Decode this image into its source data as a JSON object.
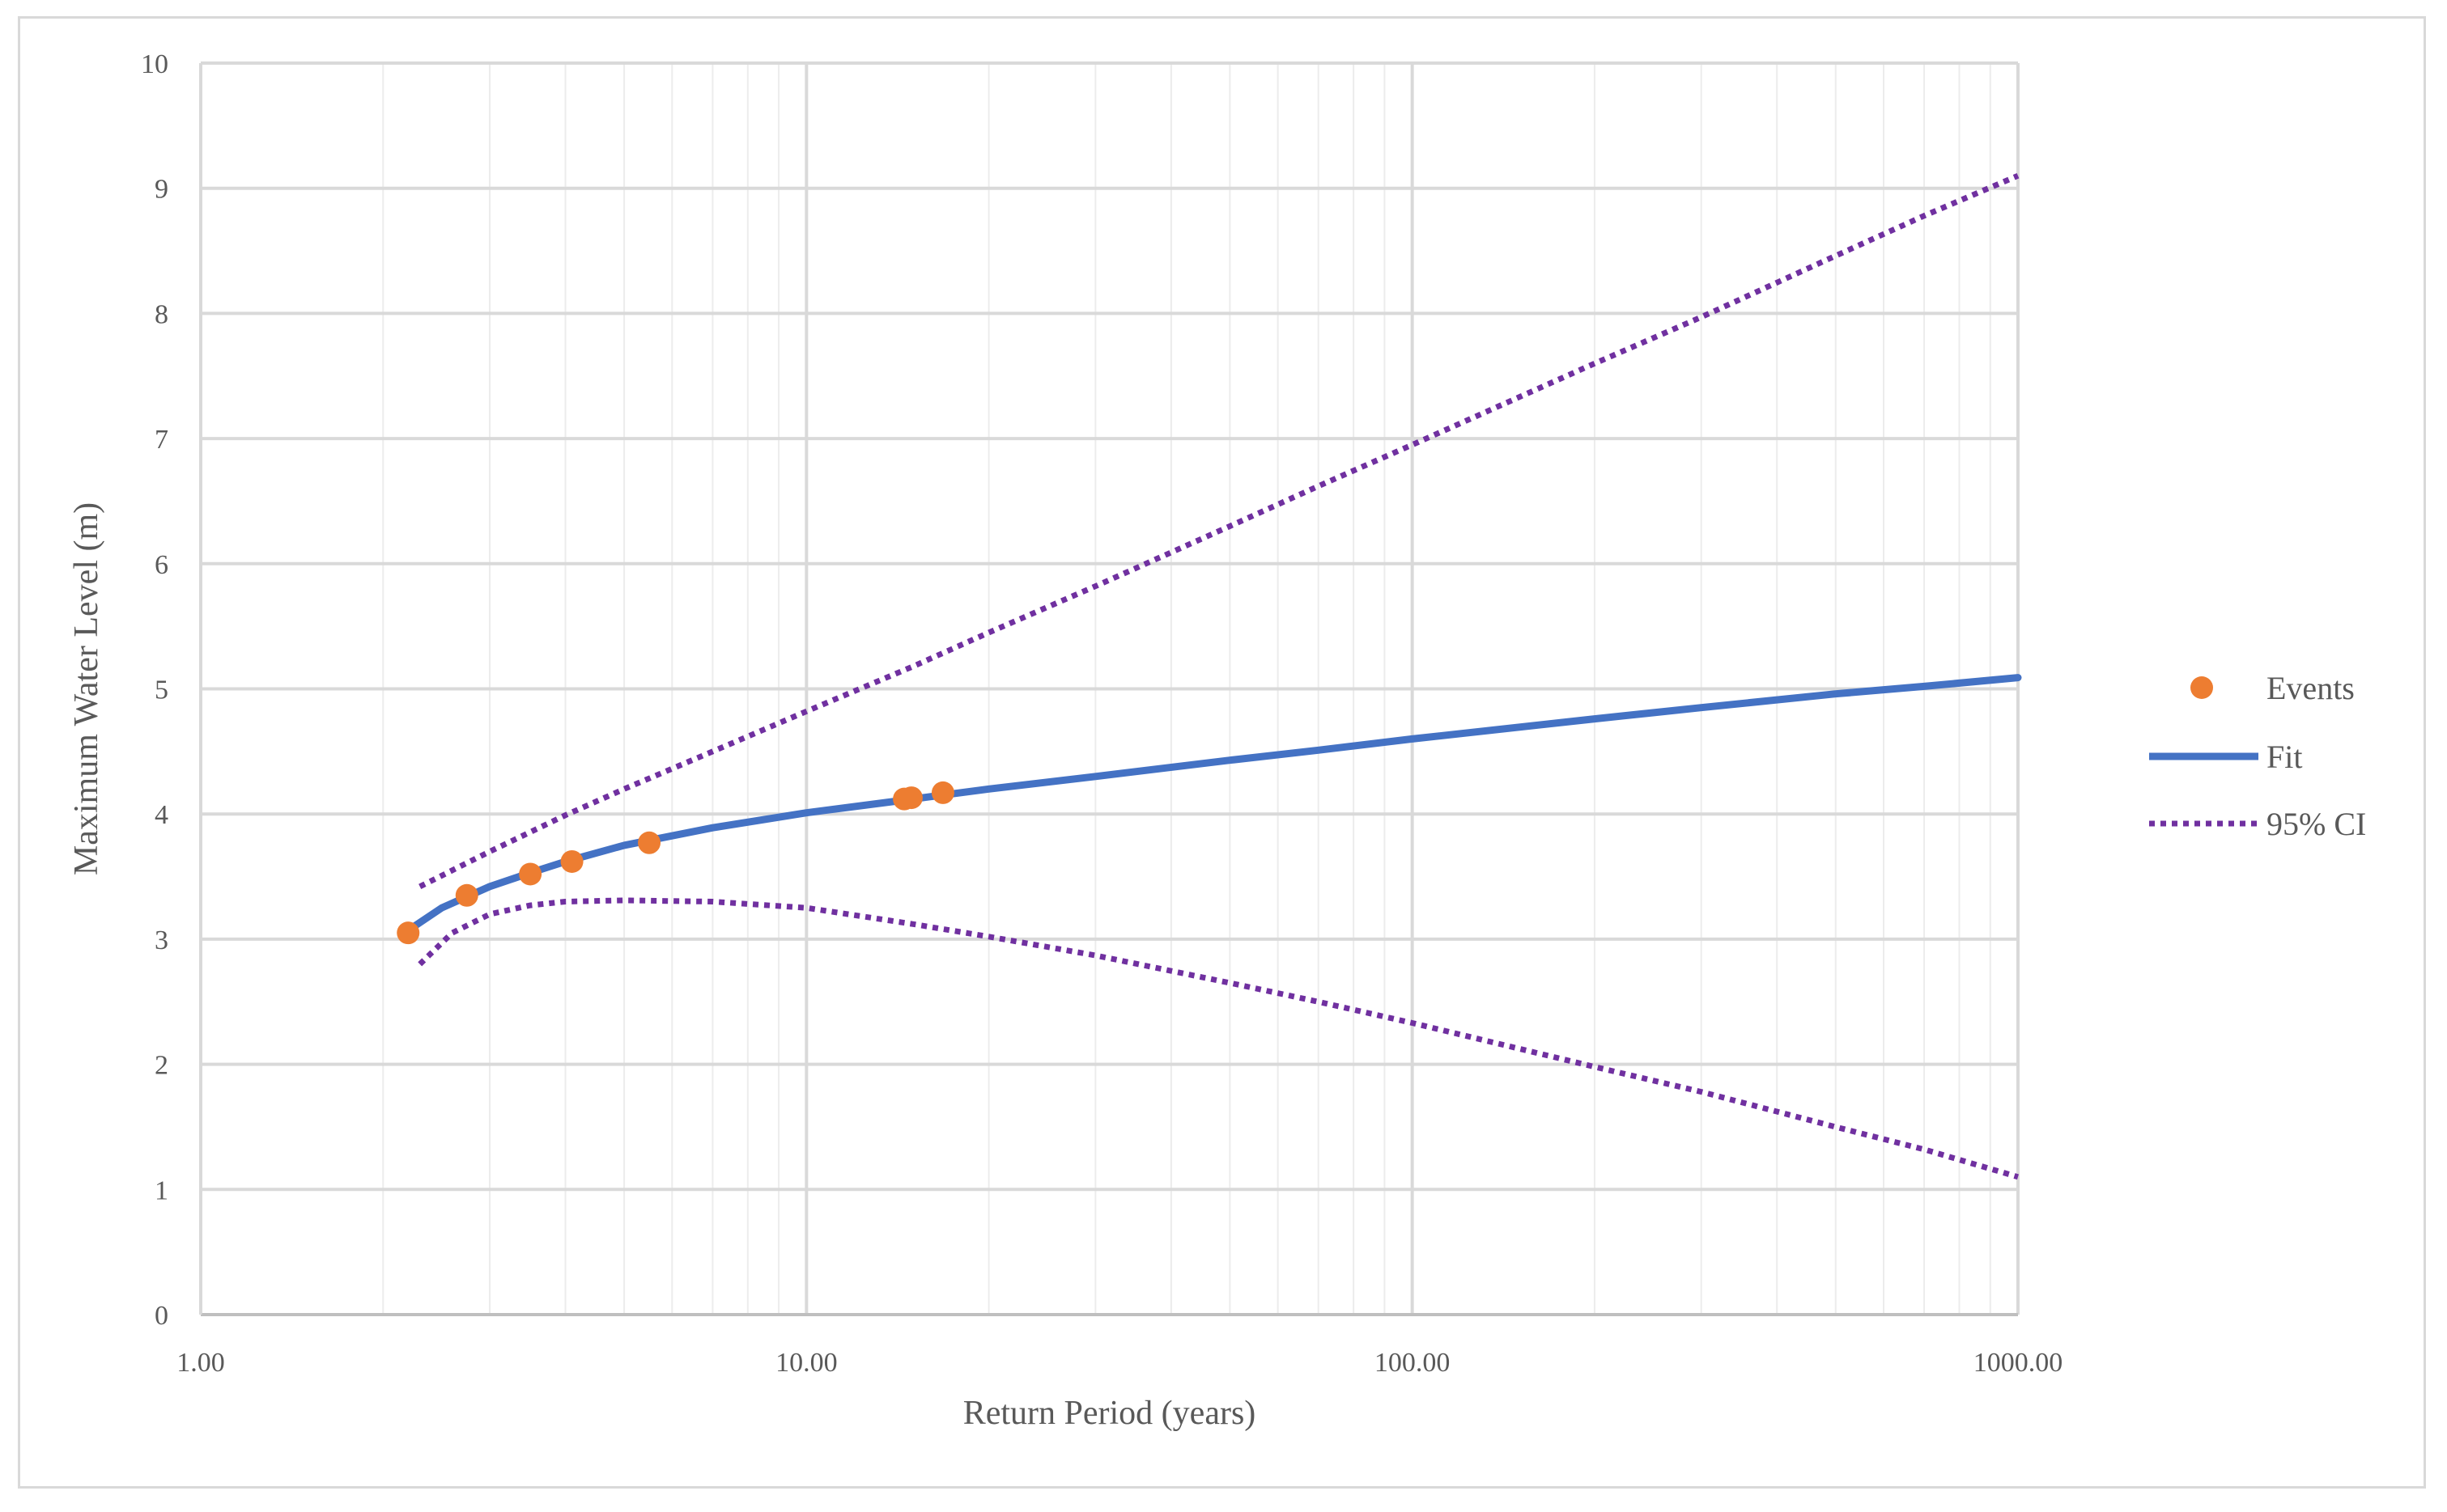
{
  "chart_data": {
    "type": "line",
    "title": "",
    "xlabel": "Return Period (years)",
    "ylabel": "Maximum Water Level (m)",
    "x_scale": "log",
    "xlim": [
      1,
      1000
    ],
    "ylim": [
      0,
      10
    ],
    "grid": true,
    "legend_position": "right",
    "x_ticks": [
      {
        "value": 1,
        "label": "1.00"
      },
      {
        "value": 10,
        "label": "10.00"
      },
      {
        "value": 100,
        "label": "100.00"
      },
      {
        "value": 1000,
        "label": "1000.00"
      }
    ],
    "y_ticks": [
      {
        "value": 0,
        "label": "0"
      },
      {
        "value": 1,
        "label": "1"
      },
      {
        "value": 2,
        "label": "2"
      },
      {
        "value": 3,
        "label": "3"
      },
      {
        "value": 4,
        "label": "4"
      },
      {
        "value": 5,
        "label": "5"
      },
      {
        "value": 6,
        "label": "6"
      },
      {
        "value": 7,
        "label": "7"
      },
      {
        "value": 8,
        "label": "8"
      },
      {
        "value": 9,
        "label": "9"
      },
      {
        "value": 10,
        "label": "10"
      }
    ],
    "series": [
      {
        "name": "Events",
        "kind": "scatter",
        "color": "#ED7D31",
        "x": [
          2.2,
          2.75,
          3.5,
          4.1,
          5.5,
          14.5,
          14.9,
          16.8
        ],
        "y": [
          3.05,
          3.35,
          3.52,
          3.62,
          3.77,
          4.12,
          4.13,
          4.17
        ]
      },
      {
        "name": "Fit",
        "kind": "line",
        "color": "#4472C4",
        "x": [
          2.2,
          2.5,
          3,
          3.5,
          4,
          5,
          7,
          10,
          15,
          20,
          30,
          50,
          70,
          100,
          200,
          300,
          500,
          700,
          1000
        ],
        "y": [
          3.07,
          3.25,
          3.42,
          3.53,
          3.62,
          3.75,
          3.89,
          4.01,
          4.12,
          4.2,
          4.3,
          4.43,
          4.51,
          4.6,
          4.76,
          4.85,
          4.96,
          5.02,
          5.09
        ]
      },
      {
        "name": "95% CI",
        "kind": "dotted-line",
        "color": "#7030A0",
        "x": [
          2.3,
          3,
          4,
          5,
          7,
          10,
          15,
          20,
          30,
          50,
          70,
          100,
          200,
          300,
          500,
          700,
          1000
        ],
        "y": [
          3.42,
          3.7,
          3.99,
          4.2,
          4.5,
          4.82,
          5.18,
          5.45,
          5.82,
          6.3,
          6.62,
          6.95,
          7.6,
          7.97,
          8.46,
          8.78,
          9.1
        ]
      },
      {
        "name": "95% CI lower",
        "legend": false,
        "kind": "dotted-line",
        "color": "#7030A0",
        "x": [
          2.3,
          2.6,
          3,
          3.5,
          4,
          5,
          7,
          10,
          15,
          20,
          30,
          50,
          70,
          100,
          200,
          300,
          500,
          700,
          1000
        ],
        "y": [
          2.8,
          3.05,
          3.2,
          3.27,
          3.3,
          3.31,
          3.3,
          3.25,
          3.12,
          3.02,
          2.87,
          2.65,
          2.5,
          2.33,
          1.98,
          1.78,
          1.5,
          1.32,
          1.1
        ]
      }
    ],
    "legend": [
      {
        "label": "Events",
        "marker": "dot",
        "color": "#ED7D31"
      },
      {
        "label": "Fit",
        "marker": "solid",
        "color": "#4472C4"
      },
      {
        "label": "95% CI",
        "marker": "dotted",
        "color": "#7030A0"
      }
    ]
  }
}
